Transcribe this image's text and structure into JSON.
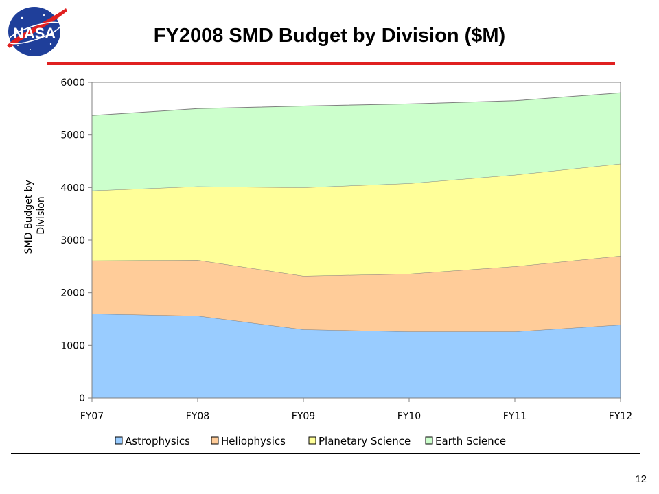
{
  "slide": {
    "title": "FY2008 SMD Budget by Division ($M)",
    "page_number": "12",
    "accent_color": "#e02020",
    "logo": {
      "icon": "nasa-meatball-logo",
      "text": "NASA"
    }
  },
  "chart_data": {
    "type": "area",
    "stacked": true,
    "title": "",
    "xlabel": "",
    "ylabel_lines": [
      "SMD Budget by",
      "Division"
    ],
    "categories": [
      "FY07",
      "FY08",
      "FY09",
      "FY10",
      "FY11",
      "FY12"
    ],
    "ylim": [
      0,
      6000
    ],
    "yticks": [
      0,
      1000,
      2000,
      3000,
      4000,
      5000,
      6000
    ],
    "grid": false,
    "legend": "bottom",
    "series": [
      {
        "name": "Astrophysics",
        "color": "#99ccff",
        "values": [
          1600,
          1560,
          1300,
          1260,
          1260,
          1390
        ]
      },
      {
        "name": "Heliophysics",
        "color": "#ffcc99",
        "values": [
          1010,
          1060,
          1020,
          1100,
          1240,
          1310
        ]
      },
      {
        "name": "Planetary Science",
        "color": "#ffff99",
        "values": [
          1330,
          1400,
          1680,
          1720,
          1740,
          1750
        ]
      },
      {
        "name": "Earth Science",
        "color": "#ccffcc",
        "values": [
          1430,
          1480,
          1550,
          1510,
          1410,
          1350
        ]
      }
    ]
  }
}
